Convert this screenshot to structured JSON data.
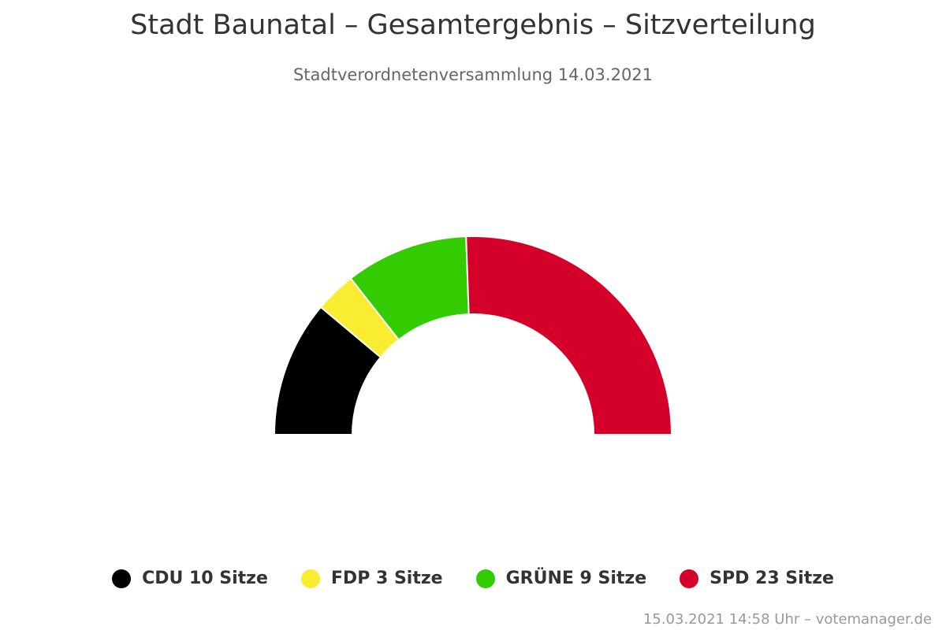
{
  "chart_data": {
    "type": "pie",
    "variant": "semi-donut",
    "title": "Stadt Baunatal – Gesamtergebnis – Sitzverteilung",
    "subtitle": "Stadtverordnetenversammlung 14.03.2021",
    "categories": [
      "CDU",
      "FDP",
      "GRÜNE",
      "SPD"
    ],
    "values": [
      10,
      3,
      9,
      23
    ],
    "colors": [
      "#000000",
      "#f9ec31",
      "#33cc00",
      "#d50029"
    ],
    "legend_labels": [
      "CDU 10 Sitze",
      "FDP 3 Sitze",
      "GRÜNE 9 Sitze",
      "SPD 23 Sitze"
    ],
    "legend_position": "bottom"
  },
  "footer": "15.03.2021 14:58 Uhr – votemanager.de"
}
